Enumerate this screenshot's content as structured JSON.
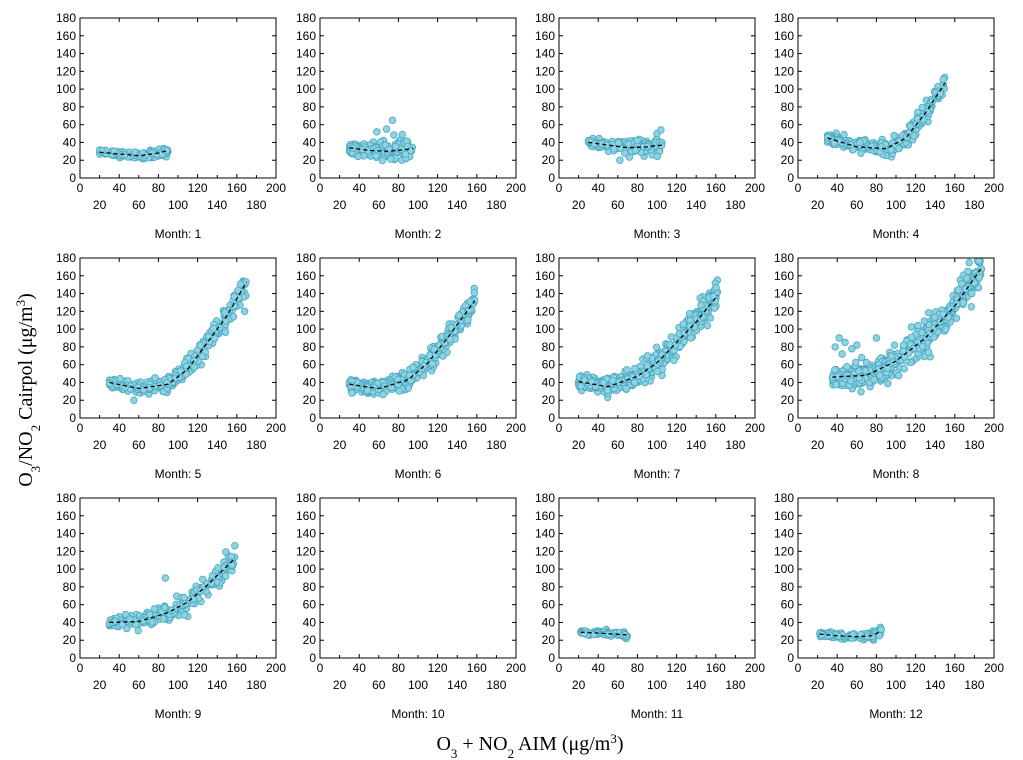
{
  "figure": {
    "ylabel": {
      "part1": "O",
      "sub1": "3",
      "part2": "/NO",
      "sub2": "2",
      "part3": " Cairpol (μg/m",
      "sup": "3",
      "part4": ")"
    },
    "xlabel": {
      "part1": "O",
      "sub1": "3",
      "part2": " + NO",
      "sub2": "2",
      "part3": " AIM (μg/m",
      "sup": "3",
      "part4": ")"
    }
  },
  "chart_data": {
    "type": "scatter",
    "xlim": [
      0,
      200
    ],
    "ylim": [
      0,
      180
    ],
    "x_ticks_major": [
      0,
      40,
      80,
      120,
      160,
      200
    ],
    "x_ticks_minor": [
      20,
      60,
      100,
      140,
      180
    ],
    "y_ticks": [
      0,
      20,
      40,
      60,
      80,
      100,
      120,
      140,
      160,
      180
    ],
    "grid": false,
    "marker_color": "#8ed3e2",
    "marker_edge_color": "#4aa8c0",
    "trend_color": "#000000",
    "panels": [
      {
        "title": "Month: 1",
        "x_range": [
          20,
          90
        ],
        "trend": [
          [
            20,
            29
          ],
          [
            40,
            27
          ],
          [
            60,
            25
          ],
          [
            80,
            28
          ],
          [
            90,
            31
          ]
        ],
        "spread": 3,
        "n": 120
      },
      {
        "title": "Month: 2",
        "x_range": [
          30,
          95
        ],
        "trend": [
          [
            30,
            34
          ],
          [
            50,
            31
          ],
          [
            70,
            30
          ],
          [
            95,
            33
          ]
        ],
        "spread": 7,
        "n": 180,
        "outliers": [
          [
            74,
            65
          ],
          [
            68,
            55
          ],
          [
            58,
            52
          ]
        ]
      },
      {
        "title": "Month: 3",
        "x_range": [
          30,
          105
        ],
        "trend": [
          [
            30,
            40
          ],
          [
            50,
            37
          ],
          [
            70,
            34
          ],
          [
            90,
            35
          ],
          [
            105,
            37
          ]
        ],
        "spread": 5,
        "n": 170,
        "outliers": [
          [
            100,
            50
          ],
          [
            104,
            54
          ],
          [
            62,
            20
          ]
        ]
      },
      {
        "title": "Month: 4",
        "x_range": [
          30,
          150
        ],
        "trend": [
          [
            30,
            45
          ],
          [
            60,
            35
          ],
          [
            90,
            33
          ],
          [
            110,
            45
          ],
          [
            130,
            73
          ],
          [
            150,
            107
          ]
        ],
        "spread": 6,
        "n": 320
      },
      {
        "title": "Month: 5",
        "x_range": [
          30,
          170
        ],
        "trend": [
          [
            30,
            40
          ],
          [
            60,
            33
          ],
          [
            90,
            38
          ],
          [
            110,
            55
          ],
          [
            130,
            85
          ],
          [
            150,
            115
          ],
          [
            170,
            153
          ]
        ],
        "spread": 7,
        "n": 330,
        "outliers": [
          [
            168,
            120
          ],
          [
            55,
            20
          ]
        ]
      },
      {
        "title": "Month: 6",
        "x_range": [
          30,
          158
        ],
        "trend": [
          [
            30,
            38
          ],
          [
            60,
            33
          ],
          [
            90,
            43
          ],
          [
            110,
            62
          ],
          [
            130,
            90
          ],
          [
            158,
            132
          ]
        ],
        "spread": 7,
        "n": 380
      },
      {
        "title": "Month: 7",
        "x_range": [
          20,
          162
        ],
        "trend": [
          [
            20,
            41
          ],
          [
            50,
            35
          ],
          [
            80,
            47
          ],
          [
            100,
            62
          ],
          [
            120,
            85
          ],
          [
            140,
            108
          ],
          [
            162,
            138
          ]
        ],
        "spread": 9,
        "n": 500
      },
      {
        "title": "Month: 8",
        "x_range": [
          35,
          188
        ],
        "trend": [
          [
            35,
            46
          ],
          [
            70,
            48
          ],
          [
            100,
            64
          ],
          [
            130,
            90
          ],
          [
            160,
            126
          ],
          [
            188,
            170
          ]
        ],
        "spread": 11,
        "n": 520,
        "outliers": [
          [
            38,
            80
          ],
          [
            42,
            90
          ],
          [
            48,
            85
          ],
          [
            55,
            78
          ],
          [
            60,
            82
          ],
          [
            45,
            72
          ],
          [
            65,
            68
          ],
          [
            80,
            90
          ],
          [
            185,
            158
          ],
          [
            180,
            152
          ]
        ]
      },
      {
        "title": "Month: 9",
        "x_range": [
          30,
          158
        ],
        "trend": [
          [
            30,
            40
          ],
          [
            60,
            41
          ],
          [
            90,
            51
          ],
          [
            110,
            63
          ],
          [
            130,
            82
          ],
          [
            158,
            112
          ]
        ],
        "spread": 7,
        "n": 260,
        "outliers": [
          [
            87,
            90
          ]
        ]
      },
      {
        "title": "Month: 10",
        "x_range": null,
        "trend": [],
        "spread": 0,
        "n": 0
      },
      {
        "title": "Month: 11",
        "x_range": [
          22,
          70
        ],
        "trend": [
          [
            22,
            29
          ],
          [
            40,
            28
          ],
          [
            55,
            27
          ],
          [
            70,
            26
          ]
        ],
        "spread": 2,
        "n": 80
      },
      {
        "title": "Month: 12",
        "x_range": [
          22,
          85
        ],
        "trend": [
          [
            22,
            27
          ],
          [
            40,
            25
          ],
          [
            60,
            24
          ],
          [
            75,
            25
          ],
          [
            85,
            30
          ]
        ],
        "spread": 3,
        "n": 120
      }
    ]
  }
}
